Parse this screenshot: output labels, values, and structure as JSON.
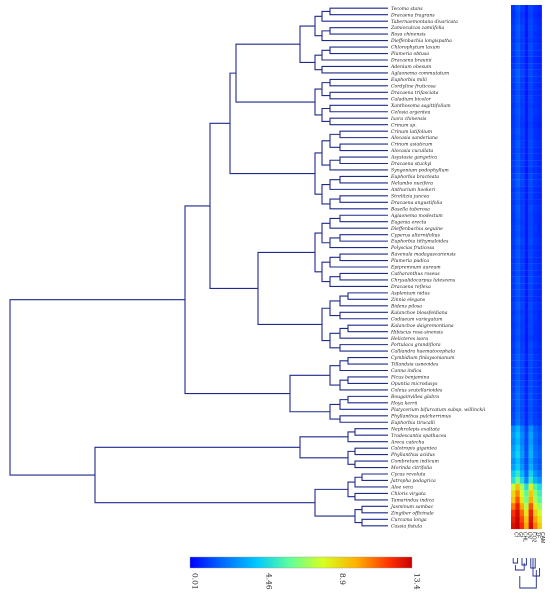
{
  "chart_data": {
    "type": "heatmap",
    "title": "",
    "rows": [
      "Tecoma stans",
      "Dracaena fragrans",
      "Tabernaemontana divaricata",
      "Zamioculcas zamiifolia",
      "Rosa chinensis",
      "Dieffenbachia longispatha",
      "Chlorophytum laxum",
      "Plumeria obtusa",
      "Dracaena braunii",
      "Adenium obesum",
      "Aglaonema commutatum",
      "Euphorbia milii",
      "Cordyline fruticosa",
      "Dracaena trifasciata",
      "Caladium bicolor",
      "Xanthosoma sagittifolium",
      "Celosia argentea",
      "Ixora chinensis",
      "Crinum sp.",
      "Crinum latifolium",
      "Alocasia sanderiana",
      "Crinum asiaticum",
      "Alocasia cucullata",
      "Asystasia gangetica",
      "Dracaena stuckyi",
      "Syngonium podophyllum",
      "Euphorbia bracteata",
      "Nelumbo nucifera",
      "Anthurium hookeri",
      "Strelitzia juncea",
      "Dracaena angustifolia",
      "Basella tuberosa",
      "Aglaonema modestum",
      "Eugenia erecta",
      "Dieffenbachia seguine",
      "Cyperus alternifolius",
      "Euphorbia tithymaloides",
      "Polyscias fruticosa",
      "Ravenala madagascariensis",
      "Plumeria pudica",
      "Epipremnum aureum",
      "Catharanthus roseus",
      "Chrysalidocarpus lutescens",
      "Dracaena reflexa",
      "Asplenium nidus",
      "Zinnia elegans",
      "Bidens pilosa",
      "Kalanchoe blossfeldiana",
      "Codiaeum variegatum",
      "Kalanchoe daigremontiana",
      "Hibiscus rosa-sinensis",
      "Helicteres isora",
      "Portulaca grandiflora",
      "Calliandra haematocephala",
      "Cymbidium finlaysonianum",
      "Tillandsia usneoides",
      "Canna indica",
      "Ficus benjamina",
      "Opuntia microdasys",
      "Coleus scutellarioides",
      "Bougainvillea glabra",
      "Hoya kerrii",
      "Platycerium bifurcatum subsp. willinckii",
      "Phyllanthus pulcherrimus",
      "Euphorbia tirucalli",
      "Nephrolepis exaltata",
      "Tradescantia spathacea",
      "Areca catechu",
      "Calotropis gigantea",
      "Phyllanthus acidus",
      "Combretum indicum",
      "Morinda citrifolia",
      "Cycas revoluta",
      "Jatropha podagrica",
      "Aloe vera",
      "Chloris virgata",
      "Tamarindus indica",
      "Jasminum sambac",
      "Zingiber officinale",
      "Curcuma longa",
      "Cassia fistula"
    ],
    "columns": [
      "Cf",
      "Gf",
      "CHL",
      "UV",
      "CO2",
      "ΣF",
      "CAM"
    ],
    "value_range": [
      0.01,
      13.4
    ],
    "colorbar_ticks": [
      "0.01",
      "4.46",
      "8.9",
      "13.4"
    ],
    "colorscale": [
      "#0000ff",
      "#0066ff",
      "#00c8ff",
      "#60ff9a",
      "#d8ff20",
      "#ffb000",
      "#ff3000",
      "#c80000"
    ],
    "values": [
      [
        1.0,
        1.6,
        1.2,
        0.6,
        1.3,
        0.9,
        0.7
      ],
      [
        0.9,
        1.4,
        1.0,
        0.5,
        1.2,
        0.8,
        0.6
      ],
      [
        1.0,
        1.5,
        1.1,
        0.6,
        1.3,
        0.9,
        0.7
      ],
      [
        1.1,
        1.7,
        1.3,
        0.6,
        1.4,
        1.0,
        0.8
      ],
      [
        1.0,
        1.6,
        1.2,
        0.5,
        1.3,
        0.9,
        0.7
      ],
      [
        1.0,
        1.5,
        1.1,
        0.6,
        1.2,
        0.9,
        0.7
      ],
      [
        1.1,
        1.7,
        1.2,
        0.6,
        1.4,
        1.0,
        0.8
      ],
      [
        1.0,
        1.6,
        1.2,
        0.6,
        1.3,
        0.9,
        0.7
      ],
      [
        0.9,
        1.4,
        1.1,
        0.5,
        1.2,
        0.8,
        0.6
      ],
      [
        1.0,
        1.5,
        1.1,
        0.6,
        1.3,
        0.9,
        0.7
      ],
      [
        1.2,
        1.8,
        1.3,
        0.7,
        1.4,
        1.0,
        0.8
      ],
      [
        1.1,
        1.7,
        1.2,
        0.6,
        1.3,
        1.0,
        0.8
      ],
      [
        1.0,
        1.6,
        1.2,
        0.6,
        1.3,
        0.9,
        0.7
      ],
      [
        1.0,
        1.5,
        1.1,
        0.5,
        1.2,
        0.9,
        0.7
      ],
      [
        1.1,
        1.6,
        1.2,
        0.6,
        1.3,
        0.9,
        0.7
      ],
      [
        1.0,
        1.5,
        1.1,
        0.6,
        1.2,
        0.9,
        0.7
      ],
      [
        1.1,
        1.6,
        1.2,
        0.6,
        1.3,
        1.0,
        0.8
      ],
      [
        1.0,
        1.5,
        1.1,
        0.6,
        1.3,
        0.9,
        0.7
      ],
      [
        1.0,
        1.4,
        1.0,
        0.5,
        1.2,
        0.8,
        0.6
      ],
      [
        1.1,
        1.6,
        1.2,
        0.6,
        1.3,
        0.9,
        0.7
      ],
      [
        1.0,
        1.5,
        1.1,
        0.6,
        1.3,
        0.9,
        0.7
      ],
      [
        1.1,
        1.7,
        1.2,
        0.6,
        1.4,
        1.0,
        0.8
      ],
      [
        1.0,
        1.5,
        1.1,
        0.6,
        1.3,
        0.9,
        0.7
      ],
      [
        1.0,
        1.6,
        1.2,
        0.6,
        1.3,
        0.9,
        0.7
      ],
      [
        1.1,
        1.6,
        1.2,
        0.6,
        1.3,
        1.0,
        0.7
      ],
      [
        1.0,
        1.5,
        1.1,
        0.5,
        1.2,
        0.9,
        0.7
      ],
      [
        1.1,
        1.7,
        1.3,
        0.6,
        1.4,
        1.0,
        0.8
      ],
      [
        1.2,
        1.8,
        1.3,
        0.7,
        1.5,
        1.0,
        0.8
      ],
      [
        1.0,
        1.5,
        1.1,
        0.6,
        1.3,
        0.9,
        0.7
      ],
      [
        1.1,
        1.6,
        1.2,
        0.6,
        1.3,
        0.9,
        0.7
      ],
      [
        1.0,
        1.5,
        1.1,
        0.6,
        1.2,
        0.9,
        0.7
      ],
      [
        1.1,
        1.7,
        1.2,
        0.6,
        1.4,
        1.0,
        0.8
      ],
      [
        1.0,
        1.6,
        1.2,
        0.6,
        1.3,
        0.9,
        0.7
      ],
      [
        1.0,
        1.5,
        1.1,
        0.6,
        1.3,
        0.9,
        0.7
      ],
      [
        1.1,
        1.6,
        1.2,
        0.6,
        1.3,
        1.0,
        0.7
      ],
      [
        1.0,
        1.5,
        1.1,
        0.6,
        1.3,
        0.9,
        0.7
      ],
      [
        1.1,
        1.7,
        1.3,
        0.6,
        1.4,
        1.0,
        0.8
      ],
      [
        1.0,
        1.5,
        1.1,
        0.6,
        1.2,
        0.9,
        0.7
      ],
      [
        1.1,
        1.6,
        1.2,
        0.6,
        1.3,
        0.9,
        0.7
      ],
      [
        1.0,
        1.5,
        1.1,
        0.5,
        1.2,
        0.9,
        0.7
      ],
      [
        1.1,
        1.6,
        1.2,
        0.6,
        1.3,
        1.0,
        0.8
      ],
      [
        1.0,
        1.5,
        1.1,
        0.6,
        1.3,
        0.9,
        0.7
      ],
      [
        1.1,
        1.7,
        1.2,
        0.6,
        1.4,
        1.0,
        0.8
      ],
      [
        1.0,
        1.6,
        1.2,
        0.6,
        1.3,
        0.9,
        0.7
      ],
      [
        1.1,
        1.6,
        1.2,
        0.6,
        1.3,
        0.9,
        0.7
      ],
      [
        1.0,
        1.5,
        1.1,
        0.6,
        1.2,
        0.9,
        0.7
      ],
      [
        1.1,
        1.7,
        1.3,
        0.6,
        1.4,
        1.0,
        0.8
      ],
      [
        1.0,
        1.5,
        1.1,
        0.6,
        1.3,
        0.9,
        0.7
      ],
      [
        1.1,
        1.6,
        1.2,
        0.6,
        1.3,
        1.0,
        0.7
      ],
      [
        1.0,
        1.5,
        1.1,
        0.6,
        1.3,
        0.9,
        0.7
      ],
      [
        1.1,
        1.6,
        1.2,
        0.6,
        1.3,
        0.9,
        0.7
      ],
      [
        1.0,
        1.5,
        1.1,
        0.5,
        1.2,
        0.9,
        0.7
      ],
      [
        1.1,
        1.7,
        1.2,
        0.6,
        1.4,
        1.0,
        0.8
      ],
      [
        1.0,
        1.6,
        1.2,
        0.6,
        1.3,
        0.9,
        0.7
      ],
      [
        1.2,
        1.8,
        1.3,
        0.7,
        1.5,
        1.0,
        0.8
      ],
      [
        1.1,
        1.7,
        1.3,
        0.6,
        1.4,
        1.0,
        0.8
      ],
      [
        1.2,
        1.8,
        1.3,
        0.7,
        1.4,
        1.0,
        0.8
      ],
      [
        1.1,
        1.7,
        1.2,
        0.6,
        1.4,
        1.0,
        0.8
      ],
      [
        1.2,
        1.8,
        1.3,
        0.7,
        1.5,
        1.1,
        0.8
      ],
      [
        1.2,
        1.9,
        1.4,
        0.7,
        1.5,
        1.1,
        0.9
      ],
      [
        1.3,
        2.0,
        1.4,
        0.7,
        1.6,
        1.1,
        0.9
      ],
      [
        1.3,
        2.0,
        1.5,
        0.8,
        1.6,
        1.2,
        0.9
      ],
      [
        1.2,
        1.9,
        1.4,
        0.7,
        1.5,
        1.1,
        0.9
      ],
      [
        1.3,
        2.1,
        1.5,
        0.8,
        1.6,
        1.2,
        0.9
      ],
      [
        1.4,
        2.2,
        1.6,
        0.8,
        1.7,
        1.2,
        1.0
      ],
      [
        2.6,
        3.4,
        2.4,
        1.3,
        2.8,
        1.8,
        1.4
      ],
      [
        2.9,
        3.8,
        2.7,
        1.5,
        3.2,
        2.0,
        1.6
      ],
      [
        2.7,
        3.5,
        2.5,
        1.4,
        3.0,
        1.9,
        1.5
      ],
      [
        3.0,
        3.9,
        2.8,
        1.5,
        3.3,
        2.1,
        1.7
      ],
      [
        3.2,
        4.2,
        3.0,
        1.6,
        3.5,
        2.2,
        1.8
      ],
      [
        2.8,
        3.7,
        2.6,
        1.4,
        3.1,
        2.0,
        1.6
      ],
      [
        3.1,
        4.0,
        2.9,
        1.6,
        3.4,
        2.2,
        1.7
      ],
      [
        4.0,
        5.0,
        3.6,
        2.0,
        4.2,
        2.8,
        2.2
      ],
      [
        4.6,
        6.2,
        4.5,
        2.6,
        5.0,
        3.4,
        2.8
      ],
      [
        7.4,
        9.2,
        6.8,
        4.6,
        8.0,
        5.4,
        4.5
      ],
      [
        8.6,
        10.2,
        7.6,
        5.6,
        9.0,
        6.4,
        5.2
      ],
      [
        9.0,
        11.0,
        8.2,
        6.0,
        9.6,
        6.8,
        5.6
      ],
      [
        10.4,
        12.2,
        9.6,
        7.0,
        11.0,
        8.0,
        6.6
      ],
      [
        11.5,
        13.0,
        10.6,
        8.2,
        12.0,
        9.0,
        7.5
      ],
      [
        12.2,
        13.3,
        11.2,
        9.0,
        12.6,
        9.8,
        8.3
      ],
      [
        12.8,
        13.4,
        11.8,
        9.6,
        13.0,
        10.4,
        8.9
      ]
    ]
  }
}
